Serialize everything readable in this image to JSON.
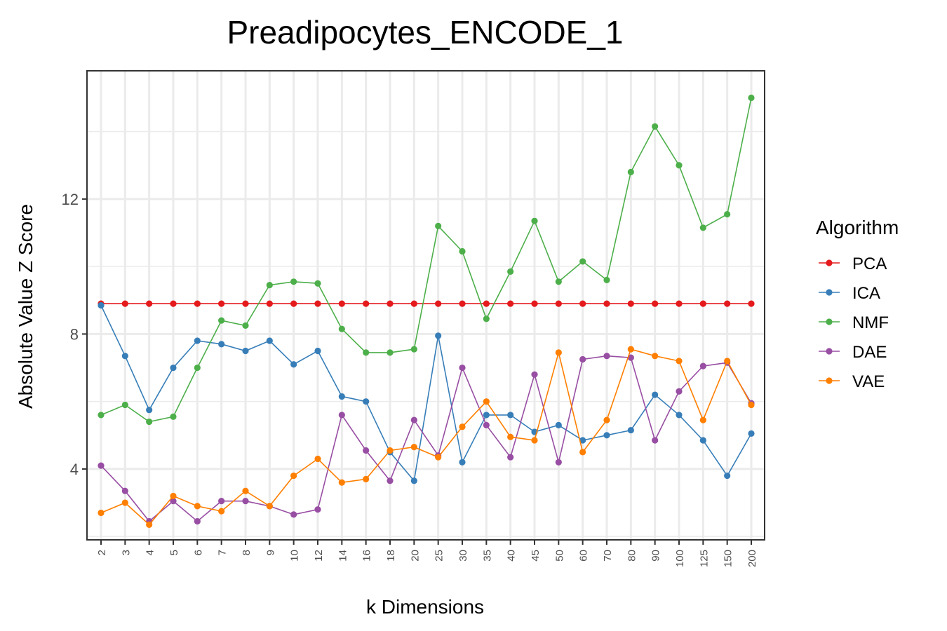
{
  "chart_data": {
    "type": "line",
    "title": "Preadipocytes_ENCODE_1",
    "xlabel": "k Dimensions",
    "ylabel": "Absolute Value Z Score",
    "ylim": [
      1.9,
      15.8
    ],
    "yticks": [
      4,
      8,
      12
    ],
    "grid": true,
    "legend": {
      "title": "Algorithm",
      "position": "right"
    },
    "categories": [
      "2",
      "3",
      "4",
      "5",
      "6",
      "7",
      "8",
      "9",
      "10",
      "12",
      "14",
      "16",
      "18",
      "20",
      "25",
      "30",
      "35",
      "40",
      "45",
      "50",
      "60",
      "70",
      "80",
      "90",
      "100",
      "125",
      "150",
      "200"
    ],
    "series": [
      {
        "name": "PCA",
        "color": "#e41a1c",
        "values": [
          8.9,
          8.9,
          8.9,
          8.9,
          8.9,
          8.9,
          8.9,
          8.9,
          8.9,
          8.9,
          8.9,
          8.9,
          8.9,
          8.9,
          8.9,
          8.9,
          8.9,
          8.9,
          8.9,
          8.9,
          8.9,
          8.9,
          8.9,
          8.9,
          8.9,
          8.9,
          8.9,
          8.9
        ]
      },
      {
        "name": "ICA",
        "color": "#377eb8",
        "values": [
          8.85,
          7.35,
          5.75,
          7.0,
          7.8,
          7.7,
          7.5,
          7.8,
          7.1,
          7.5,
          6.15,
          6.0,
          4.5,
          3.65,
          7.95,
          4.2,
          5.6,
          5.6,
          5.1,
          5.3,
          4.85,
          5.0,
          5.15,
          6.2,
          5.6,
          4.85,
          3.8,
          5.05
        ]
      },
      {
        "name": "NMF",
        "color": "#4daf4a",
        "values": [
          5.6,
          5.9,
          5.4,
          5.55,
          7.0,
          8.4,
          8.25,
          9.45,
          9.55,
          9.5,
          8.15,
          7.45,
          7.45,
          7.55,
          11.2,
          10.45,
          8.45,
          9.85,
          11.35,
          9.55,
          10.15,
          9.6,
          12.8,
          14.15,
          13.0,
          11.15,
          11.55,
          15.0
        ]
      },
      {
        "name": "DAE",
        "color": "#984ea3",
        "values": [
          4.1,
          3.35,
          2.45,
          3.05,
          2.45,
          3.05,
          3.05,
          2.9,
          2.65,
          2.8,
          5.6,
          4.55,
          3.65,
          5.45,
          4.4,
          7.0,
          5.3,
          4.35,
          6.8,
          4.2,
          7.25,
          7.35,
          7.3,
          4.85,
          6.3,
          7.05,
          7.15,
          5.95
        ]
      },
      {
        "name": "VAE",
        "color": "#ff7f00",
        "values": [
          2.7,
          3.0,
          2.35,
          3.2,
          2.9,
          2.75,
          3.35,
          2.9,
          3.8,
          4.3,
          3.6,
          3.7,
          4.55,
          4.65,
          4.35,
          5.25,
          6.0,
          4.95,
          4.85,
          7.45,
          4.5,
          5.45,
          7.55,
          7.35,
          7.2,
          5.45,
          7.2,
          5.9
        ]
      }
    ]
  }
}
